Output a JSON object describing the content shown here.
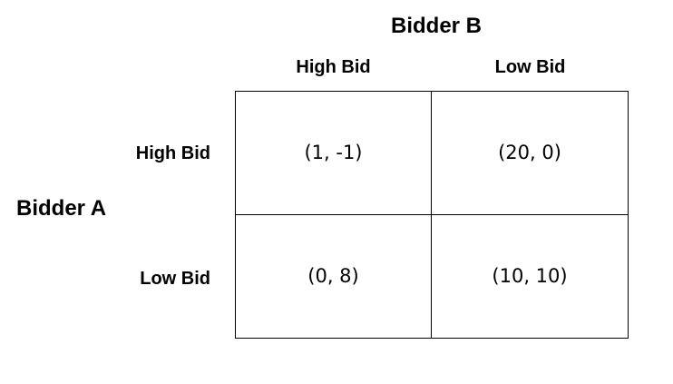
{
  "player_column": "Bidder B",
  "player_row": "Bidder A",
  "column_strategies": [
    "High Bid",
    "Low Bid"
  ],
  "row_strategies": [
    "High Bid",
    "Low Bid"
  ],
  "payoffs": [
    [
      "(1, -1)",
      "(20, 0)"
    ],
    [
      "(0, 8)",
      "(10, 10)"
    ]
  ]
}
